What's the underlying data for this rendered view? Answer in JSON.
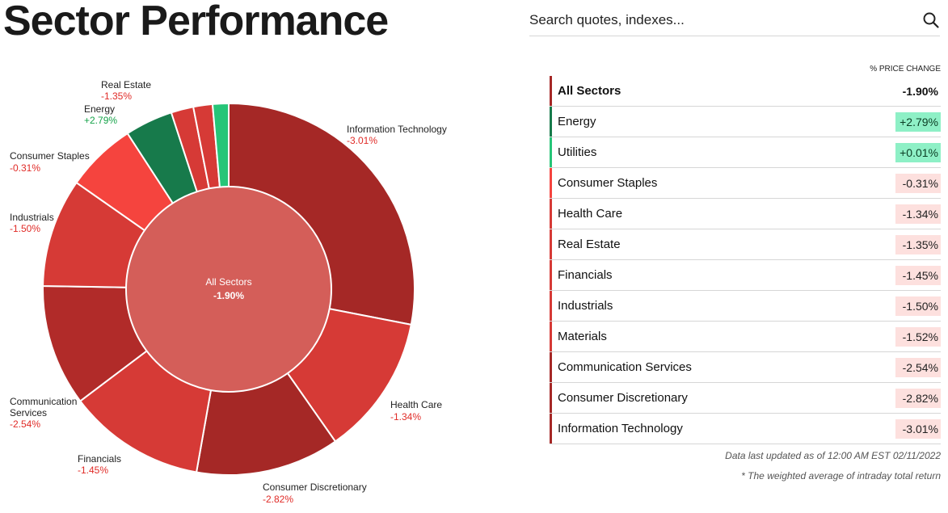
{
  "page": {
    "title": "Sector Performance"
  },
  "search": {
    "placeholder": "Search quotes, indexes..."
  },
  "icons": {
    "search": "search-icon"
  },
  "colors": {
    "strong_negative": "#a52826",
    "moderate_negative": "#d63a36",
    "light_negative": "#f5443e",
    "strong_positive": "#177a4b",
    "light_positive": "#26c578",
    "center": "#d45e59",
    "negative_badge_bg": "#fde0de",
    "positive_badge_bg": "#8ef0c6",
    "total_bar": "#a52826"
  },
  "chart_data": {
    "type": "pie",
    "center_label": "All Sectors",
    "center_value": "-1.90%",
    "slices": [
      {
        "label": "Information Technology",
        "value_label": "-3.01%",
        "change": -3.01,
        "color": "#a52826"
      },
      {
        "label": "Health Care",
        "value_label": "-1.34%",
        "change": -1.34,
        "color": "#d63a36"
      },
      {
        "label": "Consumer Discretionary",
        "value_label": "-2.82%",
        "change": -2.82,
        "color": "#a52826"
      },
      {
        "label": "Financials",
        "value_label": "-1.45%",
        "change": -1.45,
        "color": "#d63a36"
      },
      {
        "label": "Communication Services",
        "value_label": "-2.54%",
        "change": -2.54,
        "color": "#b12b29"
      },
      {
        "label": "Industrials",
        "value_label": "-1.50%",
        "change": -1.5,
        "color": "#d63a36"
      },
      {
        "label": "Consumer Staples",
        "value_label": "-0.31%",
        "change": -0.31,
        "color": "#f5443e"
      },
      {
        "label": "Energy",
        "value_label": "+2.79%",
        "change": 2.79,
        "color": "#177a4b"
      },
      {
        "label": "",
        "value_label": "",
        "change": -1.52,
        "color": "#d63a36"
      },
      {
        "label": "Real Estate",
        "value_label": "-1.35%",
        "change": -1.35,
        "color": "#d63a36"
      },
      {
        "label": "",
        "value_label": "",
        "change": 0.01,
        "color": "#26c578"
      }
    ]
  },
  "table": {
    "header": "% PRICE CHANGE",
    "rows": [
      {
        "name": "All Sectors",
        "value": "-1.90%",
        "total": true
      },
      {
        "name": "Energy",
        "value": "+2.79%",
        "dir": "up"
      },
      {
        "name": "Utilities",
        "value": "+0.01%",
        "dir": "up-light"
      },
      {
        "name": "Consumer Staples",
        "value": "-0.31%",
        "dir": "down-light"
      },
      {
        "name": "Health Care",
        "value": "-1.34%",
        "dir": "down"
      },
      {
        "name": "Real Estate",
        "value": "-1.35%",
        "dir": "down"
      },
      {
        "name": "Financials",
        "value": "-1.45%",
        "dir": "down"
      },
      {
        "name": "Industrials",
        "value": "-1.50%",
        "dir": "down"
      },
      {
        "name": "Materials",
        "value": "-1.52%",
        "dir": "down"
      },
      {
        "name": "Communication Services",
        "value": "-2.54%",
        "dir": "down-strong"
      },
      {
        "name": "Consumer Discretionary",
        "value": "-2.82%",
        "dir": "down-strong"
      },
      {
        "name": "Information Technology",
        "value": "-3.01%",
        "dir": "down-strong"
      }
    ]
  },
  "footnotes": {
    "updated": "Data last updated as of 12:00 AM EST 02/11/2022",
    "weighted": "* The weighted average of intraday total return"
  }
}
